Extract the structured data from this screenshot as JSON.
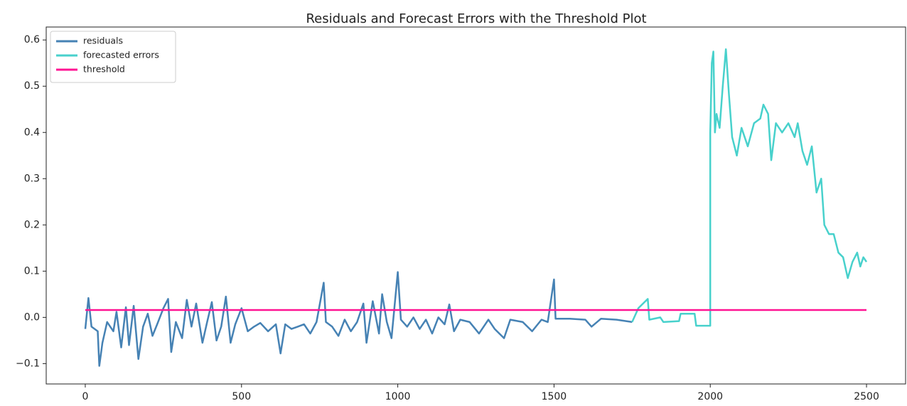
{
  "chart_data": {
    "type": "line",
    "title": "Residuals and Forecast Errors with the Threshold Plot",
    "xlim": [
      -125,
      2625
    ],
    "ylim": [
      -0.144,
      0.628
    ],
    "xticks": [
      0,
      500,
      1000,
      1500,
      2000,
      2500
    ],
    "yticks": [
      {
        "value": -0.1,
        "label": "−0.1"
      },
      {
        "value": 0,
        "label": "0.0"
      },
      0.1,
      0.2,
      0.3,
      0.4,
      0.5,
      0.6
    ],
    "legend": "upper left",
    "series": [
      {
        "name": "residuals",
        "color": "#4682b4",
        "x": [
          0,
          10,
          20,
          40,
          45,
          55,
          70,
          90,
          100,
          115,
          130,
          140,
          155,
          170,
          185,
          200,
          215,
          230,
          250,
          265,
          275,
          290,
          310,
          325,
          340,
          355,
          375,
          390,
          405,
          420,
          435,
          450,
          465,
          480,
          500,
          520,
          540,
          560,
          585,
          610,
          625,
          640,
          660,
          680,
          700,
          720,
          740,
          763,
          770,
          790,
          810,
          830,
          850,
          870,
          890,
          900,
          920,
          940,
          950,
          965,
          980,
          1000,
          1010,
          1030,
          1050,
          1070,
          1090,
          1110,
          1130,
          1150,
          1165,
          1180,
          1200,
          1230,
          1260,
          1290,
          1310,
          1340,
          1360,
          1400,
          1430,
          1460,
          1480,
          1500,
          1505,
          1550,
          1600,
          1620,
          1650,
          1700,
          1750
        ],
        "values": [
          -0.025,
          0.042,
          -0.02,
          -0.03,
          -0.105,
          -0.055,
          -0.01,
          -0.03,
          0.012,
          -0.065,
          0.022,
          -0.06,
          0.025,
          -0.09,
          -0.02,
          0.008,
          -0.04,
          -0.015,
          0.02,
          0.04,
          -0.075,
          -0.01,
          -0.045,
          0.038,
          -0.02,
          0.03,
          -0.055,
          -0.01,
          0.033,
          -0.05,
          -0.02,
          0.045,
          -0.055,
          -0.015,
          0.02,
          -0.03,
          -0.02,
          -0.012,
          -0.03,
          -0.015,
          -0.078,
          -0.015,
          -0.025,
          -0.02,
          -0.015,
          -0.035,
          -0.01,
          0.075,
          -0.01,
          -0.02,
          -0.04,
          -0.005,
          -0.03,
          -0.01,
          0.03,
          -0.055,
          0.035,
          -0.035,
          0.05,
          -0.01,
          -0.045,
          0.098,
          -0.005,
          -0.02,
          0.0,
          -0.025,
          -0.005,
          -0.035,
          0.0,
          -0.015,
          0.028,
          -0.03,
          -0.005,
          -0.01,
          -0.035,
          -0.005,
          -0.025,
          -0.045,
          -0.005,
          -0.01,
          -0.03,
          -0.005,
          -0.01,
          0.082,
          -0.003,
          -0.003,
          -0.005,
          -0.02,
          -0.003,
          -0.005,
          -0.01
        ]
      },
      {
        "name": "forecasted errors",
        "color": "#48d1cc",
        "x": [
          1750,
          1770,
          1800,
          1805,
          1840,
          1850,
          1900,
          1905,
          1950,
          1955,
          2000,
          2000,
          2005,
          2010,
          2015,
          2020,
          2030,
          2040,
          2050,
          2060,
          2070,
          2085,
          2100,
          2120,
          2140,
          2160,
          2170,
          2185,
          2195,
          2210,
          2230,
          2250,
          2270,
          2280,
          2295,
          2310,
          2325,
          2340,
          2355,
          2365,
          2380,
          2395,
          2410,
          2425,
          2440,
          2455,
          2470,
          2480,
          2490,
          2500
        ],
        "values": [
          -0.01,
          0.02,
          0.04,
          -0.005,
          0.0,
          -0.01,
          -0.008,
          0.008,
          0.008,
          -0.018,
          -0.018,
          0.4,
          0.55,
          0.575,
          0.4,
          0.44,
          0.41,
          0.5,
          0.58,
          0.48,
          0.39,
          0.35,
          0.41,
          0.37,
          0.42,
          0.43,
          0.46,
          0.44,
          0.34,
          0.42,
          0.4,
          0.42,
          0.39,
          0.42,
          0.36,
          0.33,
          0.37,
          0.27,
          0.3,
          0.2,
          0.18,
          0.18,
          0.14,
          0.13,
          0.085,
          0.12,
          0.14,
          0.11,
          0.13,
          0.12
        ]
      },
      {
        "name": "threshold",
        "color": "#ff1493",
        "x": [
          0,
          2500
        ],
        "values": [
          0.016,
          0.016
        ]
      }
    ]
  }
}
